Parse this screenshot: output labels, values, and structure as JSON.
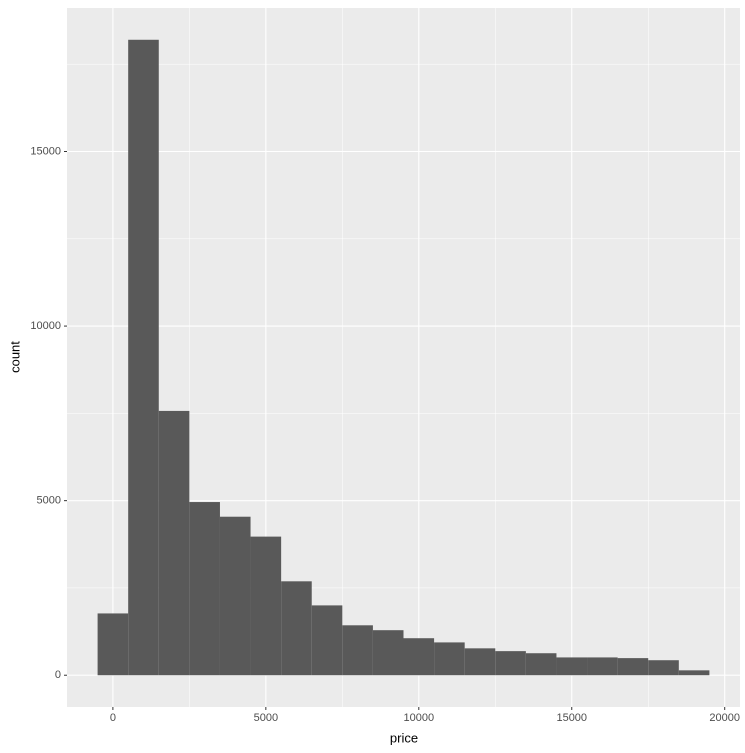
{
  "chart_data": {
    "type": "histogram",
    "x_label": "price",
    "y_label": "count",
    "bins": [
      -500,
      500,
      1500,
      2500,
      3500,
      4500,
      5500,
      6500,
      7500,
      8500,
      9500,
      10500,
      11500,
      12500,
      13500,
      14500,
      15500,
      16500,
      17500,
      18500,
      19500
    ],
    "values": [
      1770,
      18200,
      7570,
      4960,
      4540,
      3970,
      2690,
      2000,
      1430,
      1290,
      1060,
      940,
      770,
      690,
      630,
      510,
      510,
      490,
      430,
      140
    ],
    "color": "#595959",
    "xlim": [
      -1500,
      20500
    ],
    "xticks": [
      0,
      5000,
      10000,
      15000,
      20000
    ],
    "ylim": [
      -910,
      19110
    ],
    "yticks": [
      0,
      5000,
      10000,
      15000
    ],
    "grid": true,
    "minor_grid": true
  }
}
